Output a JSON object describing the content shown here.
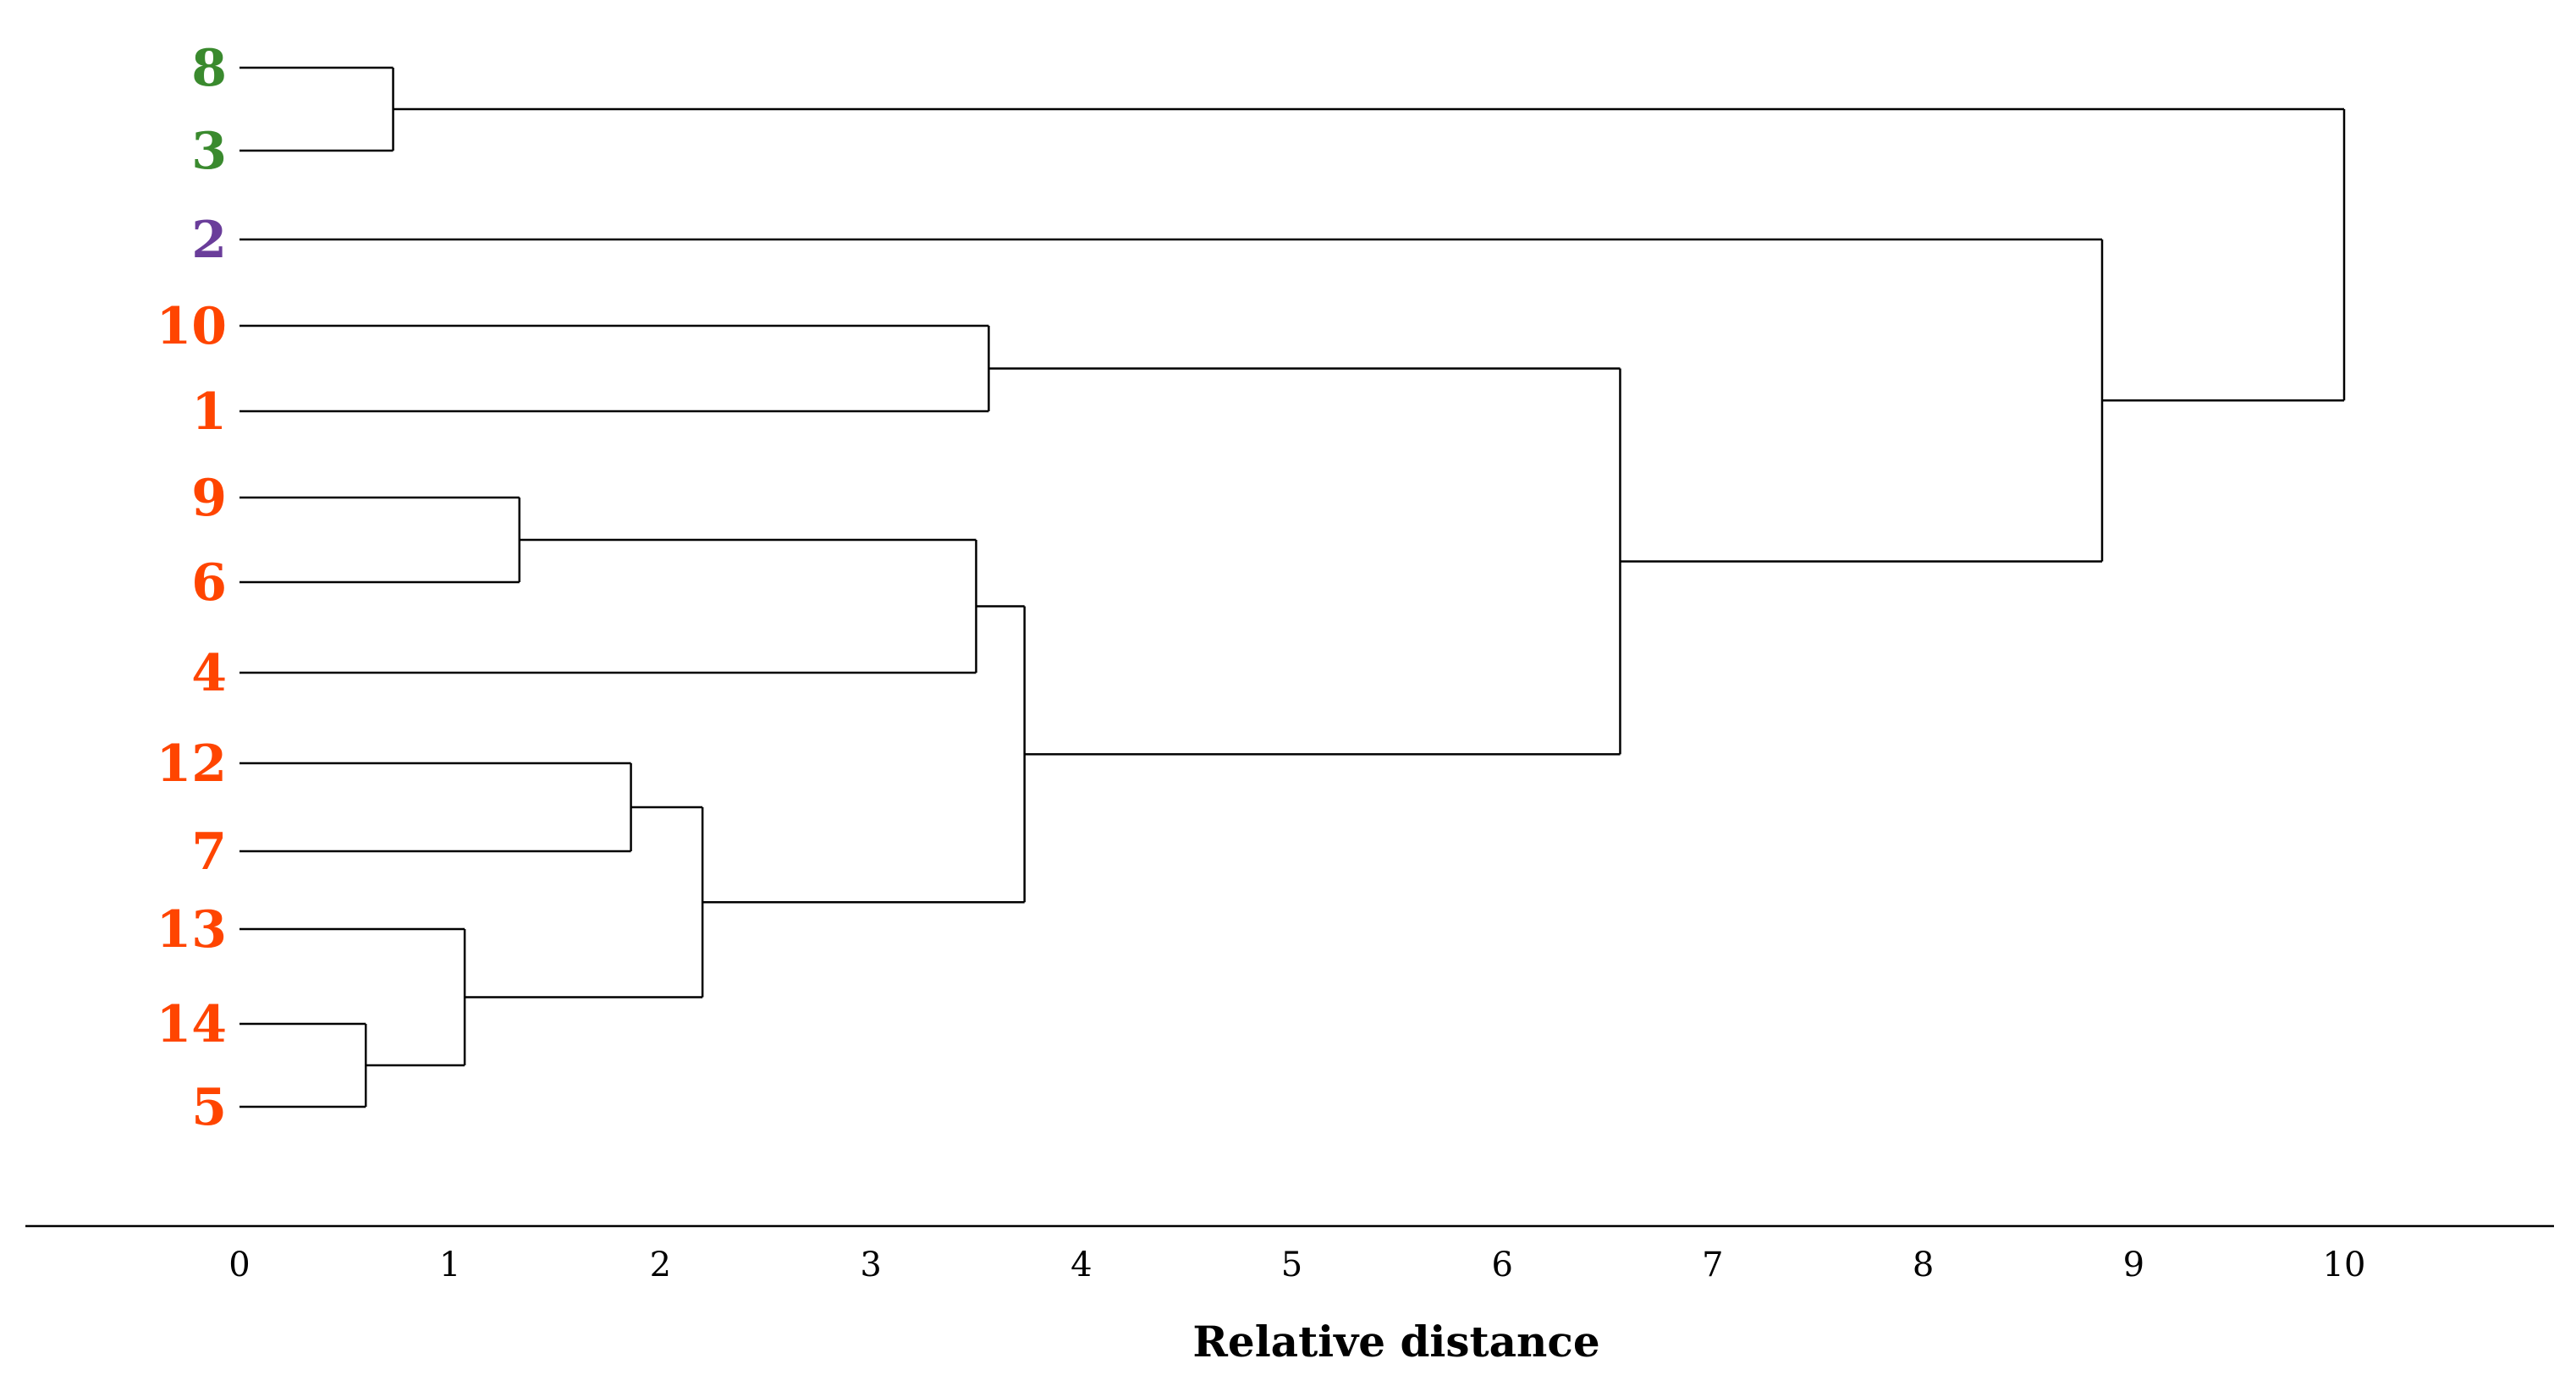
{
  "chart_data": {
    "type": "dendrogram",
    "xlabel": "Relative distance",
    "xlim": [
      0,
      10
    ],
    "x_ticks": [
      "0",
      "1",
      "2",
      "3",
      "4",
      "5",
      "6",
      "7",
      "8",
      "9",
      "10"
    ],
    "leaves": [
      {
        "label": "8",
        "color": "#3a8a2e"
      },
      {
        "label": "3",
        "color": "#3a8a2e"
      },
      {
        "label": "2",
        "color": "#6a3d9a"
      },
      {
        "label": "10",
        "color": "#ff4500"
      },
      {
        "label": "1",
        "color": "#ff4500"
      },
      {
        "label": "9",
        "color": "#ff4500"
      },
      {
        "label": "6",
        "color": "#ff4500"
      },
      {
        "label": "4",
        "color": "#ff4500"
      },
      {
        "label": "12",
        "color": "#ff4500"
      },
      {
        "label": "7",
        "color": "#ff4500"
      },
      {
        "label": "13",
        "color": "#ff4500"
      },
      {
        "label": "14",
        "color": "#ff4500"
      },
      {
        "label": "5",
        "color": "#ff4500"
      }
    ],
    "merges": [
      {
        "id": "m1",
        "left": "14",
        "right": "5",
        "distance": 0.6
      },
      {
        "id": "m2",
        "left": "8",
        "right": "3",
        "distance": 0.73
      },
      {
        "id": "m3",
        "left": "13",
        "right": "m1",
        "distance": 1.07
      },
      {
        "id": "m4",
        "left": "9",
        "right": "6",
        "distance": 1.33
      },
      {
        "id": "m5",
        "left": "12",
        "right": "7",
        "distance": 1.86
      },
      {
        "id": "m6",
        "left": "m5",
        "right": "m3",
        "distance": 2.2
      },
      {
        "id": "m7",
        "left": "m4",
        "right": "4",
        "distance": 3.5
      },
      {
        "id": "m8",
        "left": "10",
        "right": "1",
        "distance": 3.56
      },
      {
        "id": "m9",
        "left": "m7",
        "right": "m6",
        "distance": 3.73
      },
      {
        "id": "m10",
        "left": "m8",
        "right": "m9",
        "distance": 6.56
      },
      {
        "id": "m11",
        "left": "2",
        "right": "m10",
        "distance": 8.85
      },
      {
        "id": "m12",
        "left": "m2",
        "right": "m11",
        "distance": 10.0
      }
    ]
  }
}
